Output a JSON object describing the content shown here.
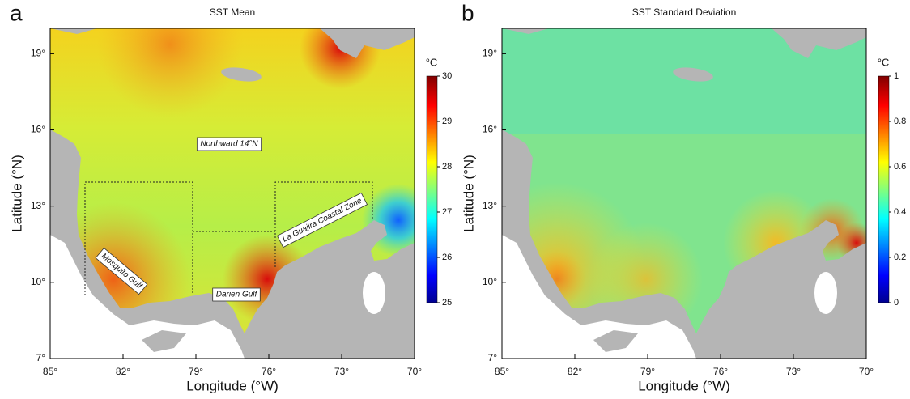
{
  "chart_data": [
    {
      "type": "map",
      "panel_label": "a",
      "title": "SST Mean",
      "xlabel": "Longitude (°W)",
      "ylabel": "Latitude (°N)",
      "xlim": [
        85,
        70
      ],
      "ylim": [
        7,
        20
      ],
      "xticks": [
        {
          "value": 85,
          "label": "85°"
        },
        {
          "value": 82,
          "label": "82°"
        },
        {
          "value": 79,
          "label": "79°"
        },
        {
          "value": 76,
          "label": "76°"
        },
        {
          "value": 73,
          "label": "73°"
        },
        {
          "value": 70,
          "label": "70°"
        }
      ],
      "yticks": [
        {
          "value": 7,
          "label": "7°"
        },
        {
          "value": 10,
          "label": "10°"
        },
        {
          "value": 13,
          "label": "13°"
        },
        {
          "value": 16,
          "label": "16°"
        },
        {
          "value": 19,
          "label": "19°"
        }
      ],
      "colorbar": {
        "label": "°C",
        "lim": [
          25,
          30
        ],
        "ticks": [
          25,
          26,
          27,
          28,
          29,
          30
        ]
      },
      "annotations": [
        "Northward 14°N",
        "La Guajira Coastal Zone",
        "Mosquito Gulf",
        "Darien Gulf"
      ]
    },
    {
      "type": "map",
      "panel_label": "b",
      "title": "SST Standard Deviation",
      "xlabel": "Longitude (°W)",
      "ylabel": "Latitude (°N)",
      "xlim": [
        85,
        70
      ],
      "ylim": [
        7,
        20
      ],
      "xticks": [
        {
          "value": 85,
          "label": "85°"
        },
        {
          "value": 82,
          "label": "82°"
        },
        {
          "value": 79,
          "label": "79°"
        },
        {
          "value": 76,
          "label": "76°"
        },
        {
          "value": 73,
          "label": "73°"
        },
        {
          "value": 70,
          "label": "70°"
        }
      ],
      "yticks": [
        {
          "value": 7,
          "label": "7°"
        },
        {
          "value": 10,
          "label": "10°"
        },
        {
          "value": 13,
          "label": "13°"
        },
        {
          "value": 16,
          "label": "16°"
        },
        {
          "value": 19,
          "label": "19°"
        }
      ],
      "colorbar": {
        "label": "°C",
        "lim": [
          0,
          1
        ],
        "ticks": [
          0,
          0.2,
          0.4,
          0.6,
          0.8,
          1
        ]
      }
    }
  ]
}
